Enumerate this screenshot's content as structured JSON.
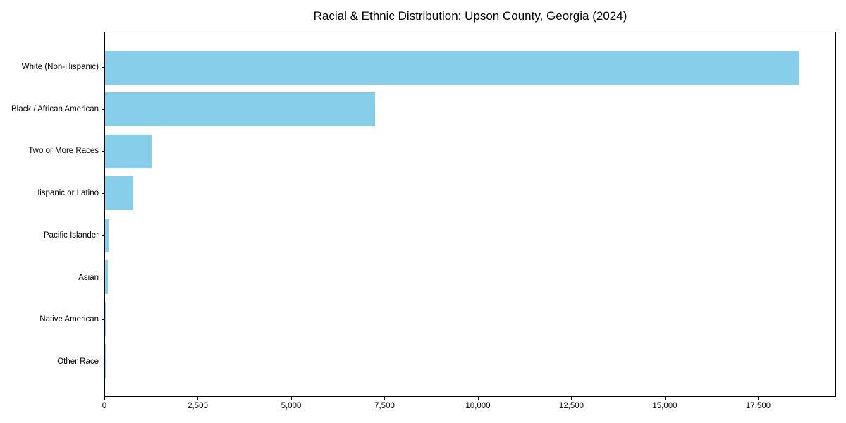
{
  "title": "Racial & Ethnic Distribution: Upson County, Georgia (2024)",
  "colors": {
    "bar": "#87CEEB",
    "axis": "#000000",
    "text": "#000000",
    "background": "#ffffff"
  },
  "chart_data": {
    "type": "bar",
    "orientation": "horizontal",
    "title": "Racial & Ethnic Distribution: Upson County, Georgia (2024)",
    "categories": [
      "White (Non-Hispanic)",
      "Black / African American",
      "Two or More Races",
      "Hispanic or Latino",
      "Pacific Islander",
      "Asian",
      "Native American",
      "Other Race"
    ],
    "values": [
      18630,
      7240,
      1250,
      760,
      90,
      85,
      15,
      5
    ],
    "xlabel": "",
    "ylabel": "",
    "xlim": [
      0,
      19585
    ],
    "x_ticks": [
      0,
      2500,
      5000,
      7500,
      10000,
      12500,
      15000,
      17500
    ],
    "x_tick_labels": [
      "0",
      "2,500",
      "5,000",
      "7,500",
      "10,000",
      "12,500",
      "15,000",
      "17,500"
    ],
    "grid": false,
    "legend": false,
    "bar_color": "#87CEEB",
    "bar_height_fraction": 0.8
  }
}
